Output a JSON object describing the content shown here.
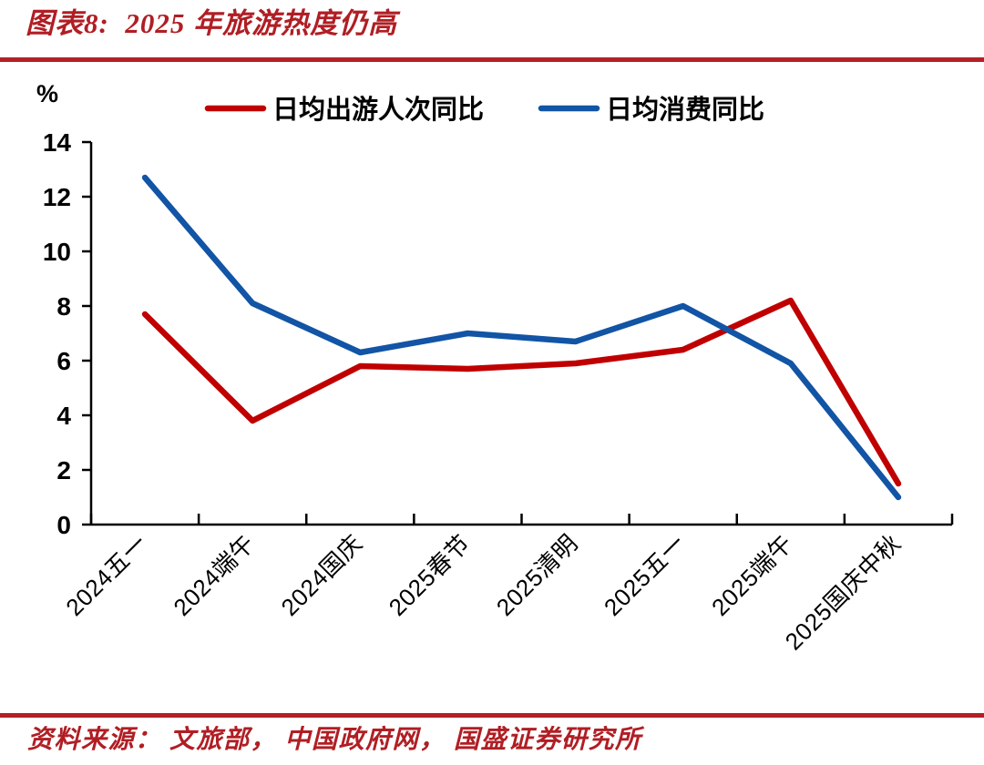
{
  "title": "图表8:  2025 年旅游热度仍高",
  "footer": {
    "source_text": "资料来源： 文旅部， 中国政府网， 国盛证券研究所"
  },
  "colors": {
    "accent_red": "#b01e24",
    "rule_red": "#b32025",
    "series_red": "#c00000",
    "series_blue": "#1254a5",
    "axis_black": "#000000"
  },
  "chart_data": {
    "type": "line",
    "title": "图表8: 2025 年旅游热度仍高",
    "unit_label": "%",
    "xlabel": "",
    "ylabel": "%",
    "categories": [
      "2024五一",
      "2024端午",
      "2024国庆",
      "2025春节",
      "2025清明",
      "2025五一",
      "2025端午",
      "2025国庆中秋"
    ],
    "series": [
      {
        "name": "日均出游人次同比",
        "color": "#c00000",
        "values": [
          7.7,
          3.8,
          5.8,
          5.7,
          5.9,
          6.4,
          8.2,
          1.5
        ]
      },
      {
        "name": "日均消费同比",
        "color": "#1254a5",
        "values": [
          12.7,
          8.1,
          6.3,
          7.0,
          6.7,
          8.0,
          5.9,
          1.0
        ]
      }
    ],
    "ylim": [
      0,
      14
    ],
    "ytick_step": 2,
    "grid": false,
    "legend_position": "top",
    "x_label_rotation_deg": -45
  }
}
